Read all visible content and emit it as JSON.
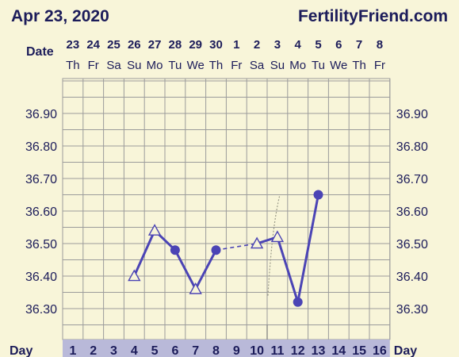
{
  "header": {
    "date": "Apr 23, 2020",
    "brand": "FertilityFriend.com"
  },
  "colors": {
    "background": "#f8f5d9",
    "grid": "#9b9b9b",
    "series": "#4b44b5",
    "marker_fill": "#4b44b5",
    "day_row_bg": "#b9b9d9",
    "text": "#1c1c5a"
  },
  "chart_data": {
    "type": "line",
    "date_row_label": "Date",
    "day_row_label": "Day",
    "dates": [
      "23",
      "24",
      "25",
      "26",
      "27",
      "28",
      "29",
      "30",
      "1",
      "2",
      "3",
      "4",
      "5",
      "6",
      "7",
      "8"
    ],
    "weekdays": [
      "Th",
      "Fr",
      "Sa",
      "Su",
      "Mo",
      "Tu",
      "We",
      "Th",
      "Fr",
      "Sa",
      "Su",
      "Mo",
      "Tu",
      "We",
      "Th",
      "Fr"
    ],
    "days": [
      "1",
      "2",
      "3",
      "4",
      "5",
      "6",
      "7",
      "8",
      "9",
      "10",
      "11",
      "12",
      "13",
      "14",
      "15",
      "16"
    ],
    "y_ticks": [
      "36.90",
      "36.80",
      "36.70",
      "36.60",
      "36.50",
      "36.40",
      "36.30"
    ],
    "ylim": [
      36.2,
      37.0
    ],
    "points": [
      {
        "day": 4,
        "temp": 36.4,
        "marker": "open-triangle"
      },
      {
        "day": 5,
        "temp": 36.54,
        "marker": "open-triangle"
      },
      {
        "day": 6,
        "temp": 36.48,
        "marker": "filled-circle"
      },
      {
        "day": 7,
        "temp": 36.36,
        "marker": "open-triangle"
      },
      {
        "day": 8,
        "temp": 36.48,
        "marker": "filled-circle"
      },
      {
        "day": 10,
        "temp": 36.5,
        "marker": "open-triangle"
      },
      {
        "day": 11,
        "temp": 36.52,
        "marker": "open-triangle"
      },
      {
        "day": 12,
        "temp": 36.32,
        "marker": "filled-circle"
      },
      {
        "day": 13,
        "temp": 36.65,
        "marker": "filled-circle"
      }
    ],
    "dashed_segments": [
      [
        8,
        10
      ]
    ],
    "marker_line_day": 11
  }
}
